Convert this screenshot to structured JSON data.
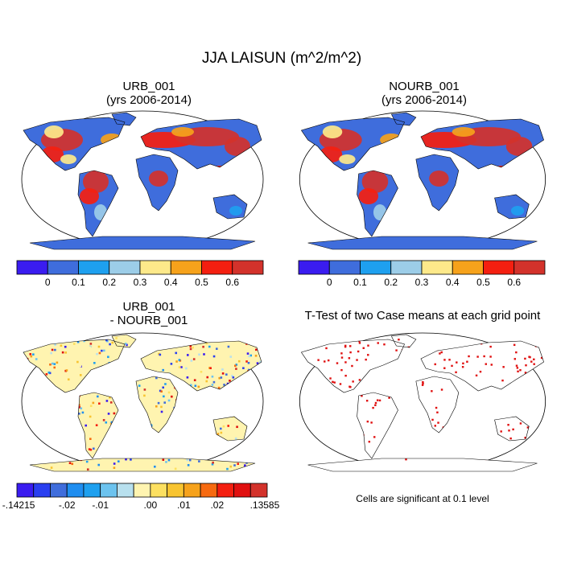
{
  "title": "JJA LAISUN (m^2/m^2)",
  "panels": [
    {
      "id": "urb",
      "title_lines": [
        "URB_001",
        "(yrs 2006-2014)"
      ]
    },
    {
      "id": "nourb",
      "title_lines": [
        "NOURB_001",
        "(yrs 2006-2014)"
      ]
    },
    {
      "id": "diff",
      "title_lines": [
        "URB_001",
        "- NOURB_001"
      ]
    },
    {
      "id": "ttest",
      "title_lines": [
        "T-Test of two Case means at each grid point"
      ]
    }
  ],
  "colorbars": {
    "absolute": {
      "colors": [
        "#3a1cf0",
        "#3f6ddc",
        "#1ea0ef",
        "#9ccde8",
        "#fde98a",
        "#f6a21b",
        "#f41f10",
        "#d3322b"
      ],
      "labels": [
        "0",
        "0.1",
        "0.2",
        "0.3",
        "0.4",
        "0.5",
        "0.6"
      ]
    },
    "difference": {
      "colors": [
        "#3a1cf0",
        "#2a3ff0",
        "#3f6ddc",
        "#1f8ef0",
        "#1ea0ef",
        "#6cc3ef",
        "#b8e0ee",
        "#fff4b0",
        "#fde060",
        "#f8c430",
        "#f6a21b",
        "#f76a10",
        "#f41f10",
        "#e01010",
        "#d3322b"
      ],
      "labels": [
        "-.14215",
        "-.02",
        "-.01",
        ".00",
        ".01",
        ".02",
        ".13585"
      ]
    }
  },
  "footnote": "Cells are significant at 0.1 level"
}
